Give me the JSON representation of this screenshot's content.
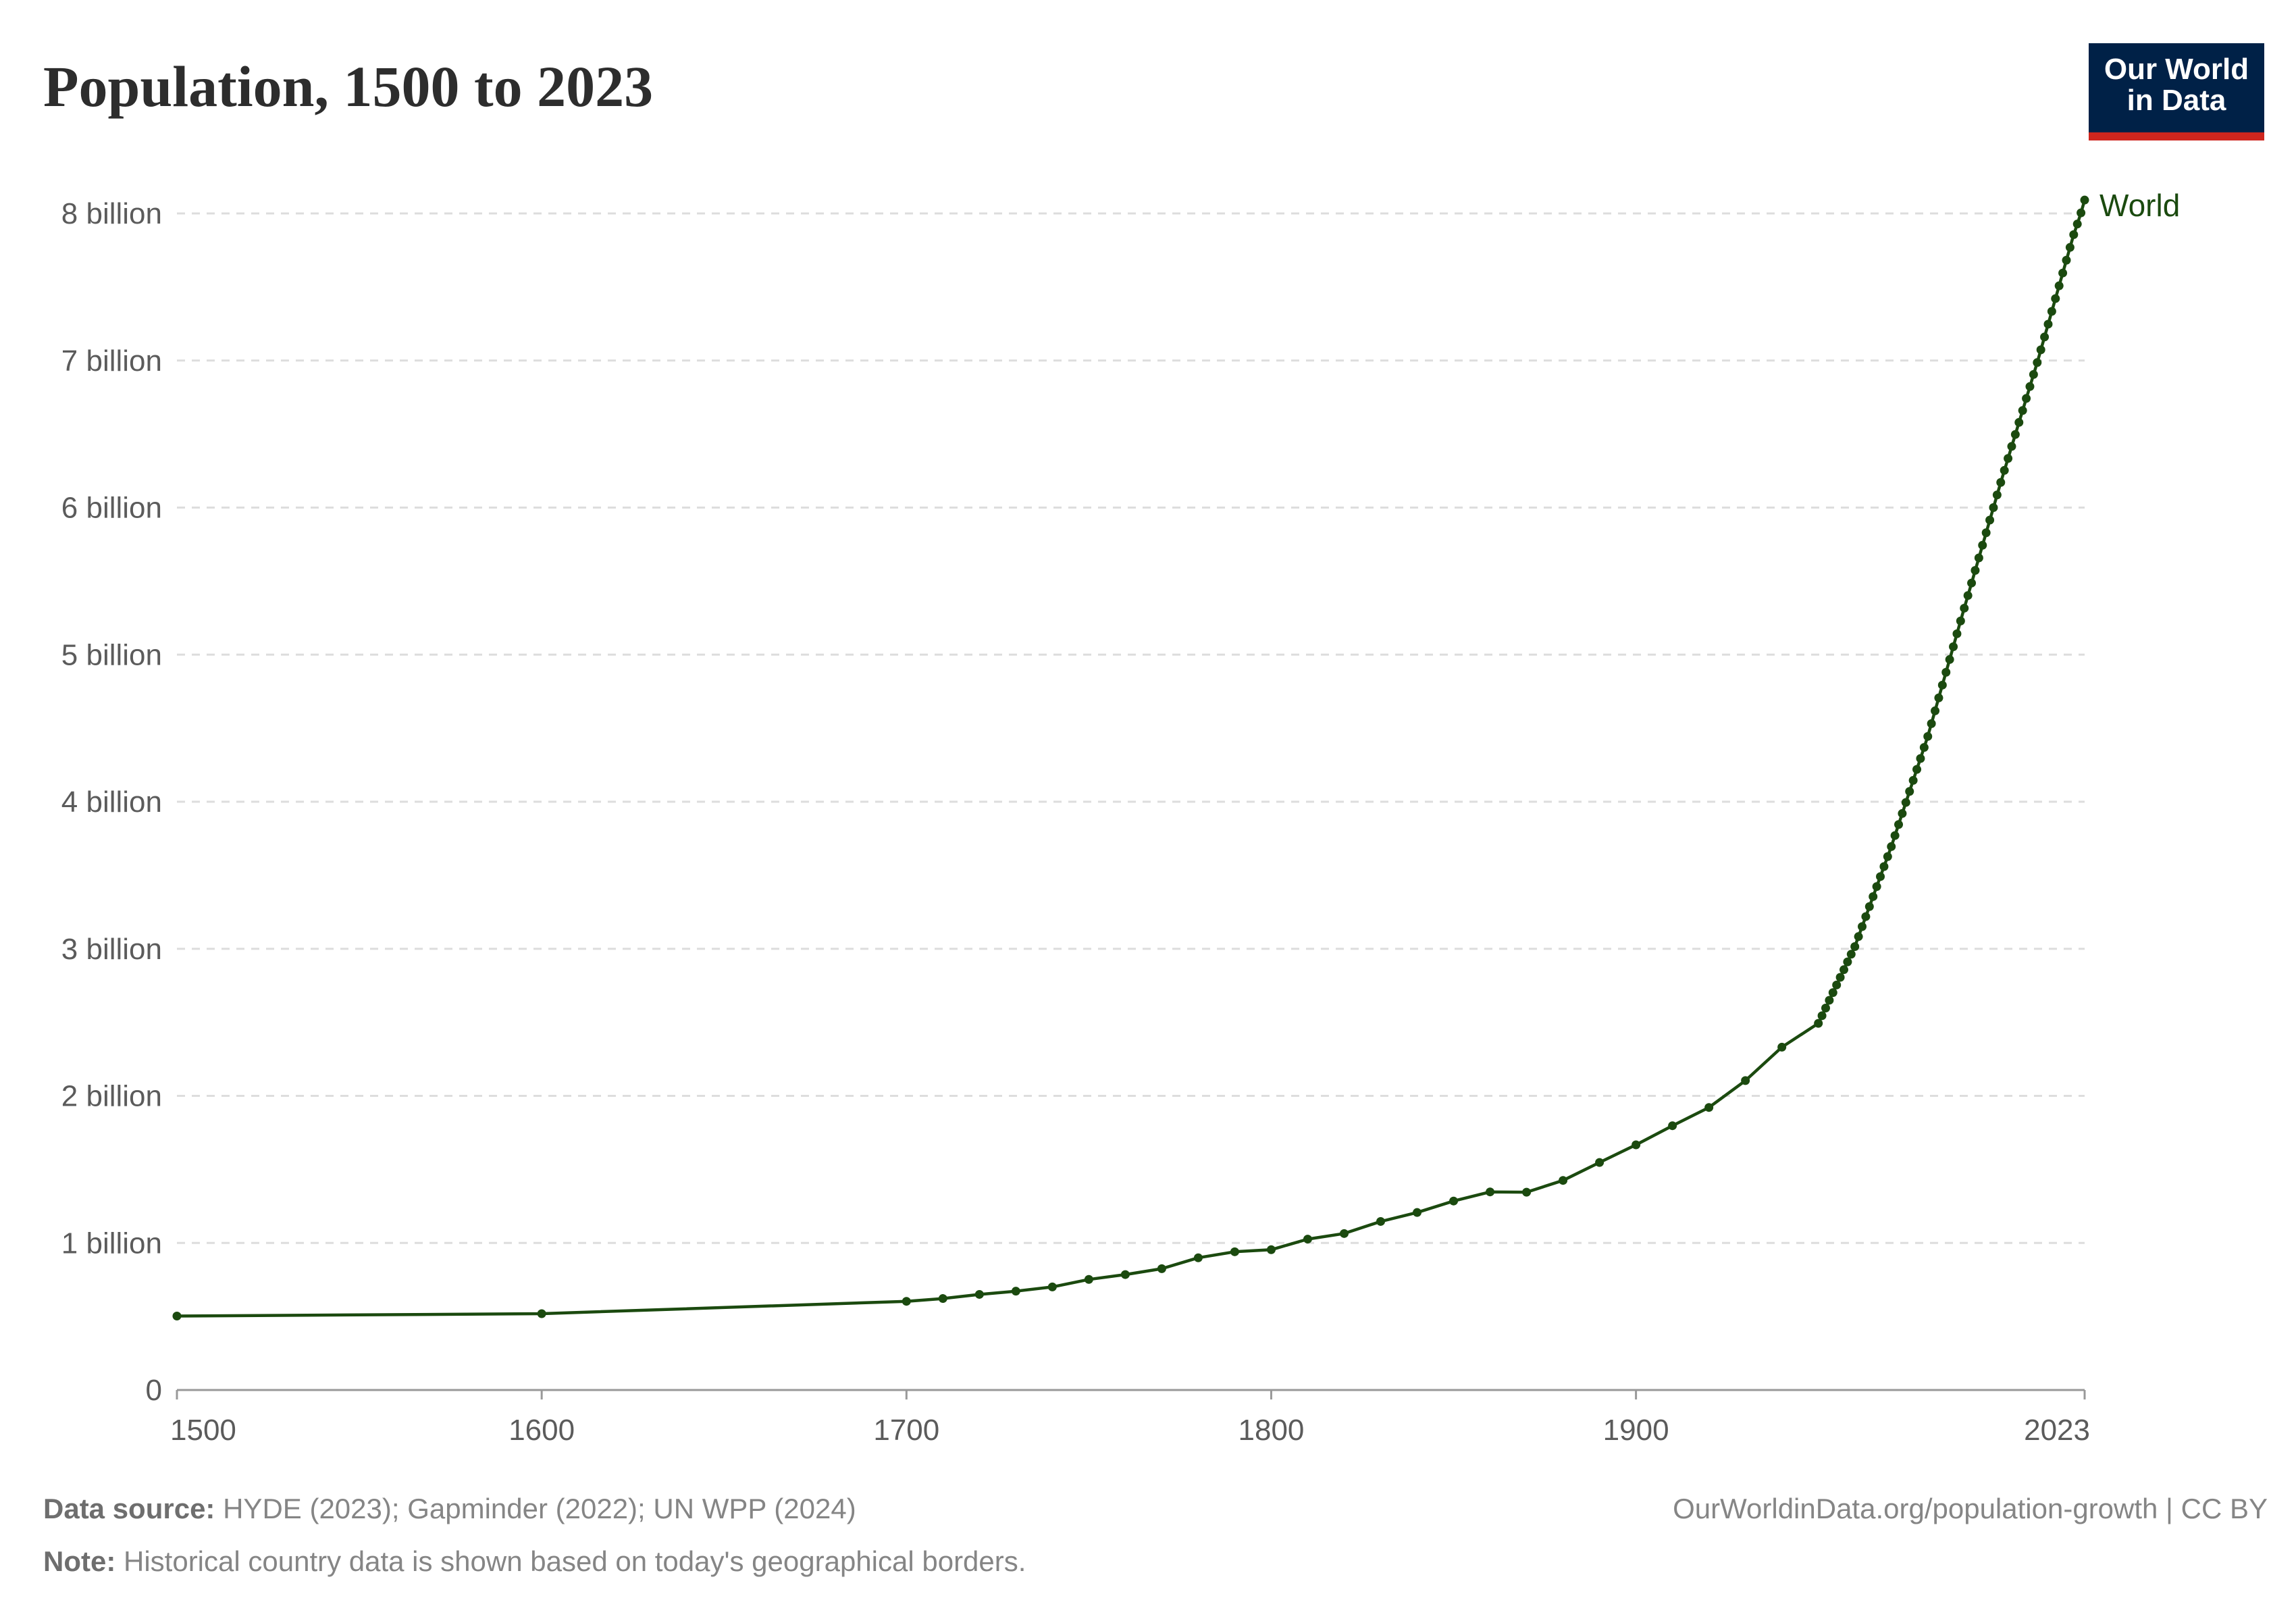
{
  "title": "Population, 1500 to 2023",
  "logo": {
    "line1": "Our World",
    "line2": "in Data"
  },
  "footer": {
    "source_label": "Data source:",
    "source_text": "HYDE (2023); Gapminder (2022); UN WPP (2024)",
    "note_label": "Note:",
    "note_text": "Historical country data is shown based on today's geographical borders.",
    "url": "OurWorldinData.org/population-growth | CC BY"
  },
  "colors": {
    "series": "#1b4a0f",
    "grid": "#dddddd",
    "axis": "#999999",
    "text": "#5b5b5b",
    "logo_bg": "#002147",
    "logo_bar": "#ce261e"
  },
  "chart_data": {
    "type": "line",
    "title": "Population, 1500 to 2023",
    "xlim": [
      1500,
      2023
    ],
    "ylim": [
      0,
      8
    ],
    "y_unit": "billion",
    "grid": "horizontal dashed",
    "x_ticks": [
      "1500",
      "1600",
      "1700",
      "1800",
      "1900",
      "2023"
    ],
    "y_ticks": [
      "0",
      "1 billion",
      "2 billion",
      "3 billion",
      "4 billion",
      "5 billion",
      "6 billion",
      "7 billion",
      "8 billion"
    ],
    "legend": "end-of-line label",
    "series": [
      {
        "name": "World",
        "points": [
          [
            1500,
            0.503
          ],
          [
            1600,
            0.519
          ],
          [
            1700,
            0.603
          ],
          [
            1710,
            0.622
          ],
          [
            1720,
            0.65
          ],
          [
            1730,
            0.672
          ],
          [
            1740,
            0.701
          ],
          [
            1750,
            0.752
          ],
          [
            1760,
            0.785
          ],
          [
            1770,
            0.825
          ],
          [
            1780,
            0.899
          ],
          [
            1790,
            0.94
          ],
          [
            1800,
            0.954
          ],
          [
            1810,
            1.026
          ],
          [
            1820,
            1.064
          ],
          [
            1830,
            1.146
          ],
          [
            1840,
            1.207
          ],
          [
            1850,
            1.285
          ],
          [
            1860,
            1.347
          ],
          [
            1870,
            1.345
          ],
          [
            1880,
            1.425
          ],
          [
            1890,
            1.547
          ],
          [
            1900,
            1.667
          ],
          [
            1910,
            1.797
          ],
          [
            1920,
            1.921
          ],
          [
            1930,
            2.104
          ],
          [
            1940,
            2.331
          ],
          [
            1950,
            2.493
          ],
          [
            1951,
            2.545
          ],
          [
            1952,
            2.597
          ],
          [
            1953,
            2.65
          ],
          [
            1954,
            2.702
          ],
          [
            1955,
            2.754
          ],
          [
            1956,
            2.806
          ],
          [
            1957,
            2.858
          ],
          [
            1958,
            2.911
          ],
          [
            1959,
            2.963
          ],
          [
            1960,
            3.015
          ],
          [
            1961,
            3.083
          ],
          [
            1962,
            3.151
          ],
          [
            1963,
            3.219
          ],
          [
            1964,
            3.287
          ],
          [
            1965,
            3.355
          ],
          [
            1966,
            3.423
          ],
          [
            1967,
            3.491
          ],
          [
            1968,
            3.559
          ],
          [
            1969,
            3.627
          ],
          [
            1970,
            3.695
          ],
          [
            1971,
            3.77
          ],
          [
            1972,
            3.845
          ],
          [
            1973,
            3.92
          ],
          [
            1974,
            3.995
          ],
          [
            1975,
            4.07
          ],
          [
            1976,
            4.145
          ],
          [
            1977,
            4.22
          ],
          [
            1978,
            4.294
          ],
          [
            1979,
            4.369
          ],
          [
            1980,
            4.444
          ],
          [
            1981,
            4.531
          ],
          [
            1982,
            4.618
          ],
          [
            1983,
            4.706
          ],
          [
            1984,
            4.793
          ],
          [
            1985,
            4.88
          ],
          [
            1986,
            4.967
          ],
          [
            1987,
            5.054
          ],
          [
            1988,
            5.142
          ],
          [
            1989,
            5.229
          ],
          [
            1990,
            5.316
          ],
          [
            1991,
            5.402
          ],
          [
            1992,
            5.487
          ],
          [
            1993,
            5.573
          ],
          [
            1994,
            5.658
          ],
          [
            1995,
            5.744
          ],
          [
            1996,
            5.829
          ],
          [
            1997,
            5.915
          ],
          [
            1998,
            6.0
          ],
          [
            1999,
            6.086
          ],
          [
            2000,
            6.171
          ],
          [
            2001,
            6.253
          ],
          [
            2002,
            6.334
          ],
          [
            2003,
            6.416
          ],
          [
            2004,
            6.497
          ],
          [
            2005,
            6.579
          ],
          [
            2006,
            6.66
          ],
          [
            2007,
            6.742
          ],
          [
            2008,
            6.823
          ],
          [
            2009,
            6.905
          ],
          [
            2010,
            6.986
          ],
          [
            2011,
            7.073
          ],
          [
            2012,
            7.16
          ],
          [
            2013,
            7.247
          ],
          [
            2014,
            7.334
          ],
          [
            2015,
            7.421
          ],
          [
            2016,
            7.508
          ],
          [
            2017,
            7.595
          ],
          [
            2018,
            7.682
          ],
          [
            2019,
            7.769
          ],
          [
            2020,
            7.856
          ],
          [
            2021,
            7.928
          ],
          [
            2022,
            8.004
          ],
          [
            2023,
            8.091
          ]
        ]
      }
    ]
  }
}
